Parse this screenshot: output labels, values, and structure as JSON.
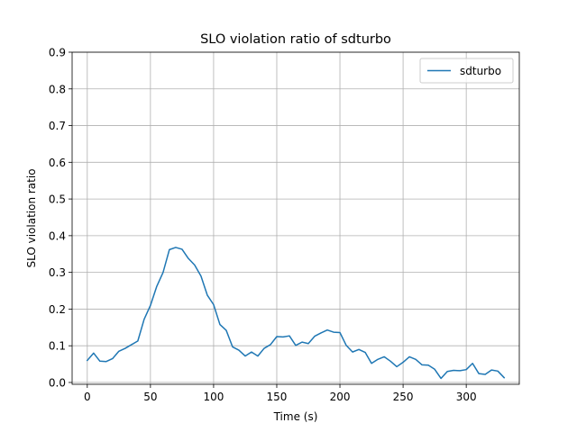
{
  "chart_data": {
    "type": "line",
    "title": "SLO violation ratio of sdturbo",
    "xlabel": "Time (s)",
    "ylabel": "SLO violation ratio",
    "xlim": [
      -12,
      342
    ],
    "ylim": [
      -0.005,
      0.9
    ],
    "xticks": [
      0,
      50,
      100,
      150,
      200,
      250,
      300
    ],
    "yticks": [
      0.0,
      0.1,
      0.2,
      0.3,
      0.4,
      0.5,
      0.6,
      0.7,
      0.8,
      0.9
    ],
    "grid": true,
    "legend_position": "top-right",
    "series": [
      {
        "name": "sdturbo",
        "color": "#1f77b4",
        "x": [
          0,
          5,
          10,
          15,
          20,
          25,
          30,
          35,
          40,
          45,
          50,
          55,
          60,
          65,
          70,
          75,
          80,
          85,
          90,
          95,
          100,
          105,
          110,
          115,
          120,
          125,
          130,
          135,
          140,
          145,
          150,
          155,
          160,
          165,
          170,
          175,
          180,
          185,
          190,
          195,
          200,
          205,
          210,
          215,
          220,
          225,
          230,
          235,
          240,
          245,
          250,
          255,
          260,
          265,
          270,
          275,
          280,
          285,
          290,
          295,
          300,
          305,
          310,
          315,
          320,
          325,
          330
        ],
        "y": [
          0.06,
          0.08,
          0.058,
          0.057,
          0.065,
          0.085,
          0.093,
          0.103,
          0.113,
          0.172,
          0.21,
          0.262,
          0.3,
          0.362,
          0.368,
          0.363,
          0.338,
          0.32,
          0.29,
          0.238,
          0.212,
          0.158,
          0.142,
          0.097,
          0.088,
          0.072,
          0.083,
          0.072,
          0.093,
          0.103,
          0.125,
          0.124,
          0.127,
          0.101,
          0.11,
          0.106,
          0.126,
          0.135,
          0.143,
          0.137,
          0.136,
          0.101,
          0.083,
          0.09,
          0.082,
          0.052,
          0.063,
          0.07,
          0.058,
          0.043,
          0.055,
          0.07,
          0.063,
          0.048,
          0.047,
          0.036,
          0.011,
          0.03,
          0.033,
          0.032,
          0.035,
          0.052,
          0.024,
          0.022,
          0.034,
          0.031,
          0.013
        ]
      }
    ]
  }
}
